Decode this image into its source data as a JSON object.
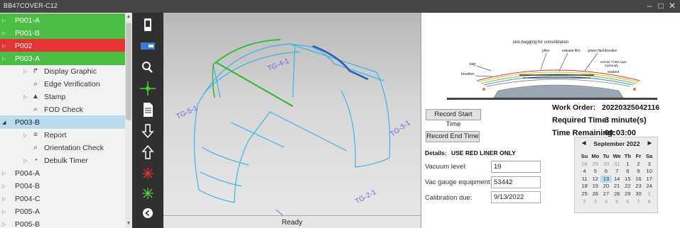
{
  "window": {
    "title": "BB47COVER-C12",
    "controls": [
      "minimize-icon",
      "maximize-icon",
      "close-icon"
    ]
  },
  "tree": {
    "items": [
      {
        "label": "P001-A",
        "state": "green",
        "indent": 0,
        "toggle": "▷"
      },
      {
        "label": "P001-B",
        "state": "green",
        "indent": 0,
        "toggle": "▷"
      },
      {
        "label": "P002",
        "state": "red",
        "indent": 0,
        "toggle": "▷"
      },
      {
        "label": "P003-A",
        "state": "green",
        "indent": 0,
        "toggle": "▷"
      },
      {
        "label": "Display Graphic",
        "state": "normal",
        "indent": 2,
        "toggle": "▷",
        "icon": "display-graphic-icon",
        "glyph": "↱"
      },
      {
        "label": "Edge Verification",
        "state": "normal",
        "indent": 2,
        "toggle": "",
        "icon": "search-icon",
        "glyph": "⌕"
      },
      {
        "label": "Stamp",
        "state": "normal",
        "indent": 2,
        "toggle": "▷",
        "icon": "stamp-icon",
        "glyph": "▲"
      },
      {
        "label": "FOD Check",
        "state": "normal",
        "indent": 2,
        "toggle": "",
        "icon": "search-icon",
        "glyph": "⌕"
      },
      {
        "label": "P003-B",
        "state": "selected",
        "indent": 0,
        "toggle": "◢"
      },
      {
        "label": "Report",
        "state": "normal",
        "indent": 2,
        "toggle": "▷",
        "icon": "report-icon",
        "glyph": "≡"
      },
      {
        "label": "Orientation Check",
        "state": "normal",
        "indent": 2,
        "toggle": "",
        "icon": "search-icon",
        "glyph": "⌕"
      },
      {
        "label": "Debulk Timer",
        "state": "normal",
        "indent": 2,
        "toggle": "▷",
        "icon": "timer-icon",
        "glyph": "◔"
      },
      {
        "label": "P004-A",
        "state": "normal",
        "indent": 0,
        "toggle": "▷"
      },
      {
        "label": "P004-B",
        "state": "normal",
        "indent": 0,
        "toggle": "▷"
      },
      {
        "label": "P004-C",
        "state": "normal",
        "indent": 0,
        "toggle": "▷"
      },
      {
        "label": "P005-A",
        "state": "normal",
        "indent": 0,
        "toggle": "▷"
      },
      {
        "label": "P005-B",
        "state": "normal",
        "indent": 0,
        "toggle": "▷"
      }
    ]
  },
  "toolbar": {
    "tools": [
      {
        "name": "device-icon",
        "color": "#ffffff"
      },
      {
        "name": "screen-icon",
        "color": "#3a7bd5"
      },
      {
        "name": "zoom-icon",
        "color": "#ffffff"
      },
      {
        "name": "crosshair-icon",
        "color": "#4cd137"
      },
      {
        "name": "document-icon",
        "color": "#ffffff"
      },
      {
        "name": "arrow-down-icon",
        "color": "#ffffff"
      },
      {
        "name": "arrow-up-icon",
        "color": "#ffffff"
      },
      {
        "name": "laser-red-icon",
        "color": "#e53333"
      },
      {
        "name": "laser-green-icon",
        "color": "#4cd137"
      },
      {
        "name": "back-icon",
        "color": "#ffffff"
      }
    ]
  },
  "viewport": {
    "labels": [
      "TG-4-1",
      "TG-5-1",
      "TG-3-1",
      "TG-2-1"
    ],
    "colors": {
      "outline": "#38b6e8",
      "highlight_blue": "#2f5fb3",
      "highlight_green": "#3cb83c",
      "label": "#6a6ae0"
    }
  },
  "status": {
    "text": "Ready"
  },
  "diagram": {
    "title": "skin bagging for consolidation",
    "labels": {
      "plies": "plies",
      "release_film": "release film",
      "green_flashbreaker": "green flashbreaker",
      "bag": "bag",
      "breather": "breather",
      "tape_line1": "anhold TCBS tape",
      "tape_line2": "(optional)",
      "sealant": "sealant"
    }
  },
  "work": {
    "order_label": "Work Order:",
    "order_value": "20220325042116",
    "required_label": "Required Time:",
    "required_value": "3 minute(s)",
    "remaining_label": "Time Remaining:",
    "remaining_value": "00:03:00"
  },
  "buttons": {
    "record_start": "Record Start Time",
    "record_end": "Record End Time"
  },
  "details": {
    "label": "Details:",
    "value": "USE RED LINER ONLY"
  },
  "fields": {
    "vacuum_label": "Vacuum level:",
    "vacuum_value": "19",
    "gauge_label": "Vac gauge equipment #:",
    "gauge_value": "53442",
    "calibration_label": "Calibration due:",
    "calibration_value": "9/13/2022"
  },
  "calendar": {
    "month": "September 2022",
    "days_of_week": [
      "Su",
      "Mo",
      "Tu",
      "We",
      "Th",
      "Fr",
      "Sa"
    ],
    "weeks": [
      [
        "28",
        "29",
        "30",
        "31",
        "1",
        "2",
        "3"
      ],
      [
        "4",
        "5",
        "6",
        "7",
        "8",
        "9",
        "10"
      ],
      [
        "11",
        "12",
        "13",
        "14",
        "15",
        "16",
        "17"
      ],
      [
        "18",
        "19",
        "20",
        "21",
        "22",
        "23",
        "24"
      ],
      [
        "25",
        "26",
        "27",
        "28",
        "29",
        "30",
        "1"
      ],
      [
        "2",
        "3",
        "4",
        "5",
        "6",
        "7",
        "8"
      ]
    ],
    "selected": "13"
  }
}
